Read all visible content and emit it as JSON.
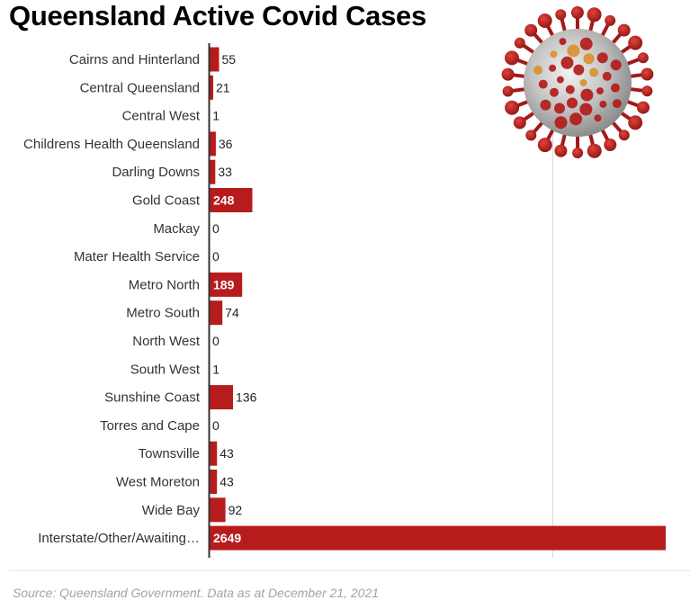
{
  "chart_data": {
    "type": "bar",
    "orientation": "horizontal",
    "title": "Queensland Active Covid Cases",
    "categories": [
      "Cairns and Hinterland",
      "Central Queensland",
      "Central West",
      "Childrens Health Queensland",
      "Darling Downs",
      "Gold Coast",
      "Mackay",
      "Mater Health Service",
      "Metro North",
      "Metro South",
      "North West",
      "South West",
      "Sunshine Coast",
      "Torres and Cape",
      "Townsville",
      "West Moreton",
      "Wide Bay",
      "Interstate/Other/Awaiting…"
    ],
    "values": [
      55,
      21,
      1,
      36,
      33,
      248,
      0,
      0,
      189,
      74,
      0,
      1,
      136,
      0,
      43,
      43,
      92,
      2649
    ],
    "xlim": [
      0,
      2649
    ],
    "bar_color": "#b71c1c",
    "grid": "single vertical gridline",
    "source": "Source: Queensland Government. Data as at December  21, 2021"
  },
  "image": {
    "icon": "coronavirus-illustration"
  }
}
